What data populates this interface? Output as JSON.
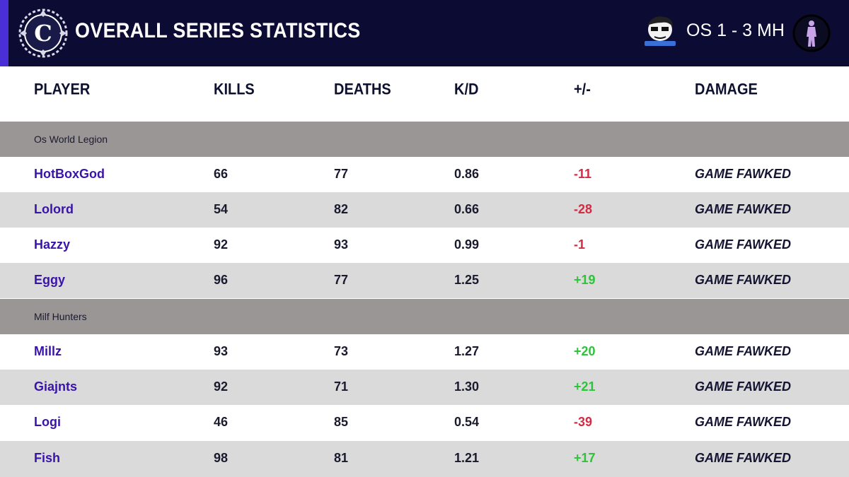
{
  "header": {
    "title": "OVERALL SERIES STATISTICS",
    "logo_letter": "C",
    "score": "OS 1 - 3 MH",
    "colors": {
      "background": "#0b0b33",
      "accent": "#4a2fd6"
    }
  },
  "columns": {
    "player": "PLAYER",
    "kills": "KILLS",
    "deaths": "DEATHS",
    "kd": "K/D",
    "plusminus": "+/-",
    "damage": "DAMAGE"
  },
  "teams": [
    {
      "name": "Os World Legion",
      "players": [
        {
          "name": "HotBoxGod",
          "kills": "66",
          "deaths": "77",
          "kd": "0.86",
          "pm": "-11",
          "damage": "GAME FAWKED"
        },
        {
          "name": "Lolord",
          "kills": "54",
          "deaths": "82",
          "kd": "0.66",
          "pm": "-28",
          "damage": "GAME FAWKED"
        },
        {
          "name": "Hazzy",
          "kills": "92",
          "deaths": "93",
          "kd": "0.99",
          "pm": "-1",
          "damage": "GAME FAWKED"
        },
        {
          "name": "Eggy",
          "kills": "96",
          "deaths": "77",
          "kd": "1.25",
          "pm": "+19",
          "damage": "GAME FAWKED"
        }
      ]
    },
    {
      "name": "Milf Hunters",
      "players": [
        {
          "name": "Millz",
          "kills": "93",
          "deaths": "73",
          "kd": "1.27",
          "pm": "+20",
          "damage": "GAME FAWKED"
        },
        {
          "name": "Giajnts",
          "kills": "92",
          "deaths": "71",
          "kd": "1.30",
          "pm": "+21",
          "damage": "GAME FAWKED"
        },
        {
          "name": "Logi",
          "kills": "46",
          "deaths": "85",
          "kd": "0.54",
          "pm": "-39",
          "damage": "GAME FAWKED"
        },
        {
          "name": "Fish",
          "kills": "98",
          "deaths": "81",
          "kd": "1.21",
          "pm": "+17",
          "damage": "GAME FAWKED"
        }
      ]
    }
  ],
  "colors": {
    "positive": "#2fc23a",
    "negative": "#d42a43",
    "player_name": "#3a14a8",
    "row_alt": "#dadada",
    "group_row": "#9a9696"
  },
  "icons": {
    "league_logo": "ornate-c-crest-icon",
    "team_left_logo": "cartoon-avatar-logo-icon",
    "team_right_logo": "silhouette-circle-logo-icon"
  }
}
